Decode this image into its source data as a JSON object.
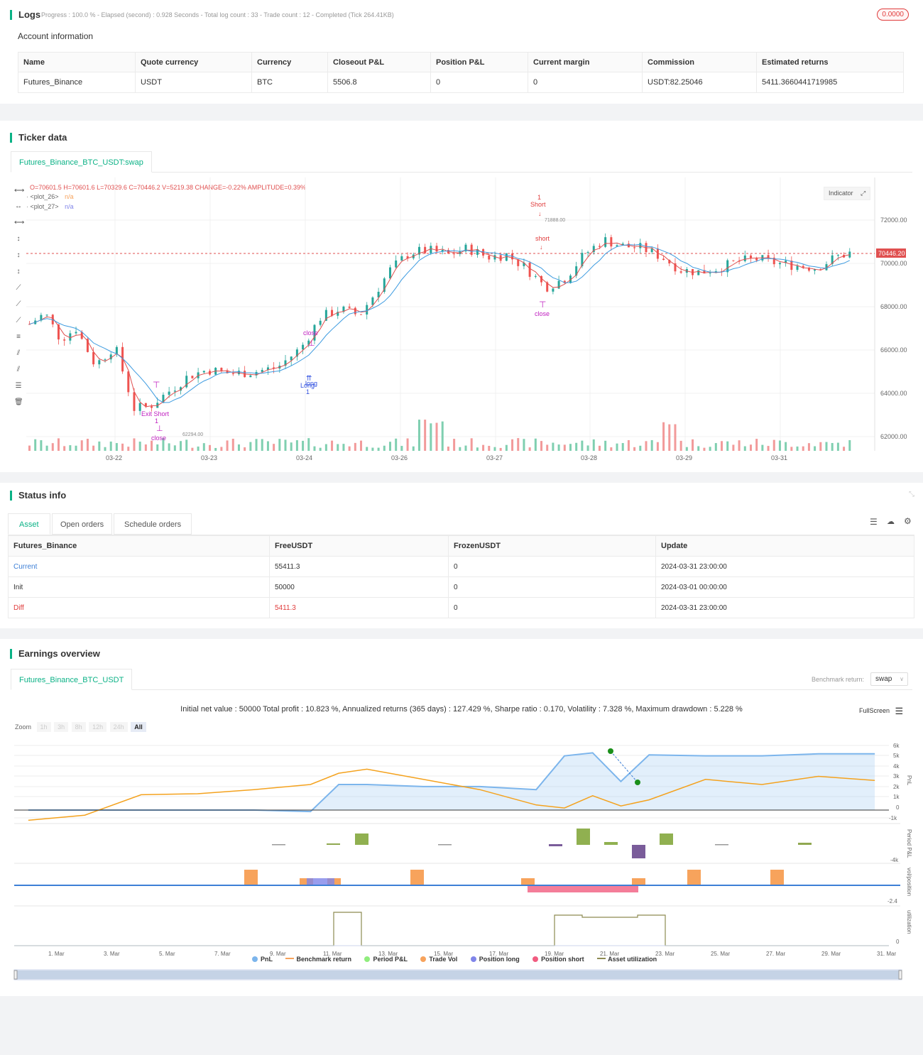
{
  "logs": {
    "title": "Logs",
    "status_line": "Progress : 100.0 % - Elapsed (second) : 0.928  Seconds - Total log count : 33 - Trade count : 12 - Completed (Tick 264.41KB)",
    "badge": "0.0000"
  },
  "account": {
    "heading": "Account information",
    "columns": [
      "Name",
      "Quote currency",
      "Currency",
      "Closeout P&L",
      "Position P&L",
      "Current margin",
      "Commission",
      "Estimated returns"
    ],
    "row": [
      "Futures_Binance",
      "USDT",
      "BTC",
      "5506.8",
      "0",
      "0",
      "USDT:82.25046",
      "5411.3660441719985"
    ]
  },
  "ticker": {
    "title": "Ticker data",
    "tab": "Futures_Binance_BTC_USDT:swap",
    "ohlc": "O=70601.5 H=70601.6 L=70329.6 C=70446.2 V=5219.38 CHANGE=-0.22% AMPLITUDE=0.39%",
    "plot26_label": "<plot_26>",
    "plot26_val": "n/a",
    "plot27_label": "<plot_27>",
    "plot27_val": "n/a",
    "indicator_btn": "Indicator",
    "price_tag": "70446.20",
    "y_ticks": [
      "72000.00",
      "70000.00",
      "68000.00",
      "66000.00",
      "64000.00",
      "62000.00"
    ],
    "x_ticks": [
      "03-22",
      "03-23",
      "03-24",
      "03-26",
      "03-27",
      "03-28",
      "03-29",
      "03-31"
    ],
    "high_label": "71888.00",
    "low_label": "62294.00",
    "ann_short_num": "1",
    "ann_short": "Short",
    "ann_short2": "short",
    "ann_close1": "close",
    "ann_close2": "close",
    "ann_close3": "close",
    "ann_long": "Long",
    "ann_long2": "long",
    "ann_long_num": "1",
    "ann_exit_short": "Exit Short",
    "ann_exit_num": "1"
  },
  "status": {
    "title": "Status info",
    "tabs": [
      "Asset",
      "Open orders",
      "Schedule orders"
    ],
    "columns": [
      "Futures_Binance",
      "FreeUSDT",
      "FrozenUSDT",
      "Update"
    ],
    "rows": [
      [
        "Current",
        "55411.3",
        "0",
        "2024-03-31 23:00:00"
      ],
      [
        "Init",
        "50000",
        "0",
        "2024-03-01 00:00:00"
      ],
      [
        "Diff",
        "5411.3",
        "0",
        "2024-03-31 23:00:00"
      ]
    ],
    "colors": {
      "current": "#3d7fd6",
      "diff": "#e03c3c"
    }
  },
  "earnings": {
    "title": "Earnings overview",
    "tab": "Futures_Binance_BTC_USDT",
    "benchmark_label": "Benchmark return:",
    "benchmark_value": "swap",
    "summary": "Initial net value : 50000 Total profit : 10.823 %, Annualized returns (365 days) : 127.429 %, Sharpe ratio : 0.170, Volatility : 7.328 %, Maximum drawdown : 5.228 %",
    "fullscreen": "FullScreen",
    "zoom_label": "Zoom",
    "zoom_buttons": [
      "1h",
      "3h",
      "8h",
      "12h",
      "24h",
      "All"
    ],
    "pnl_ticks": [
      "6k",
      "5k",
      "4k",
      "3k",
      "2k",
      "1k",
      "0",
      "-1k"
    ],
    "period_tick": "-4k",
    "vol_tick": "-2.4",
    "util_tick": "0",
    "axis_pnl": "PnL",
    "axis_period": "Period P&L",
    "axis_vol": "vol/position",
    "axis_util": "utilization",
    "x_dates": [
      "1. Mar",
      "3. Mar",
      "5. Mar",
      "7. Mar",
      "9. Mar",
      "11. Mar",
      "13. Mar",
      "15. Mar",
      "17. Mar",
      "19. Mar",
      "21. Mar",
      "23. Mar",
      "25. Mar",
      "27. Mar",
      "29. Mar",
      "31. Mar"
    ],
    "legend": [
      {
        "name": "PnL",
        "color": "#7cb5ec"
      },
      {
        "name": "Benchmark return",
        "color": "#f7a35c"
      },
      {
        "name": "Period P&L",
        "color": "#90ed7d"
      },
      {
        "name": "Trade Vol",
        "color": "#f7a35c"
      },
      {
        "name": "Position long",
        "color": "#8085e9"
      },
      {
        "name": "Position short",
        "color": "#f15c80"
      },
      {
        "name": "Asset utilization",
        "color": "#8d8b52"
      }
    ]
  },
  "chart_data": {
    "type": "line",
    "x": [
      1,
      3,
      5,
      7,
      9,
      11,
      12,
      13,
      15,
      17,
      19,
      20,
      21,
      22,
      23,
      25,
      27,
      29,
      31
    ],
    "series": [
      {
        "name": "PnL",
        "values": [
          0,
          0,
          0,
          0,
          0,
          -150,
          2500,
          2500,
          2300,
          2300,
          2000,
          5300,
          5600,
          2800,
          5400,
          5300,
          5300,
          5500,
          5500
        ]
      },
      {
        "name": "Benchmark return",
        "values": [
          -1000,
          -500,
          1500,
          1600,
          2000,
          2500,
          3600,
          4000,
          3000,
          2000,
          500,
          200,
          1400,
          400,
          1000,
          3000,
          2500,
          3300,
          2900
        ]
      }
    ],
    "ylim": [
      -1000,
      6000
    ]
  }
}
